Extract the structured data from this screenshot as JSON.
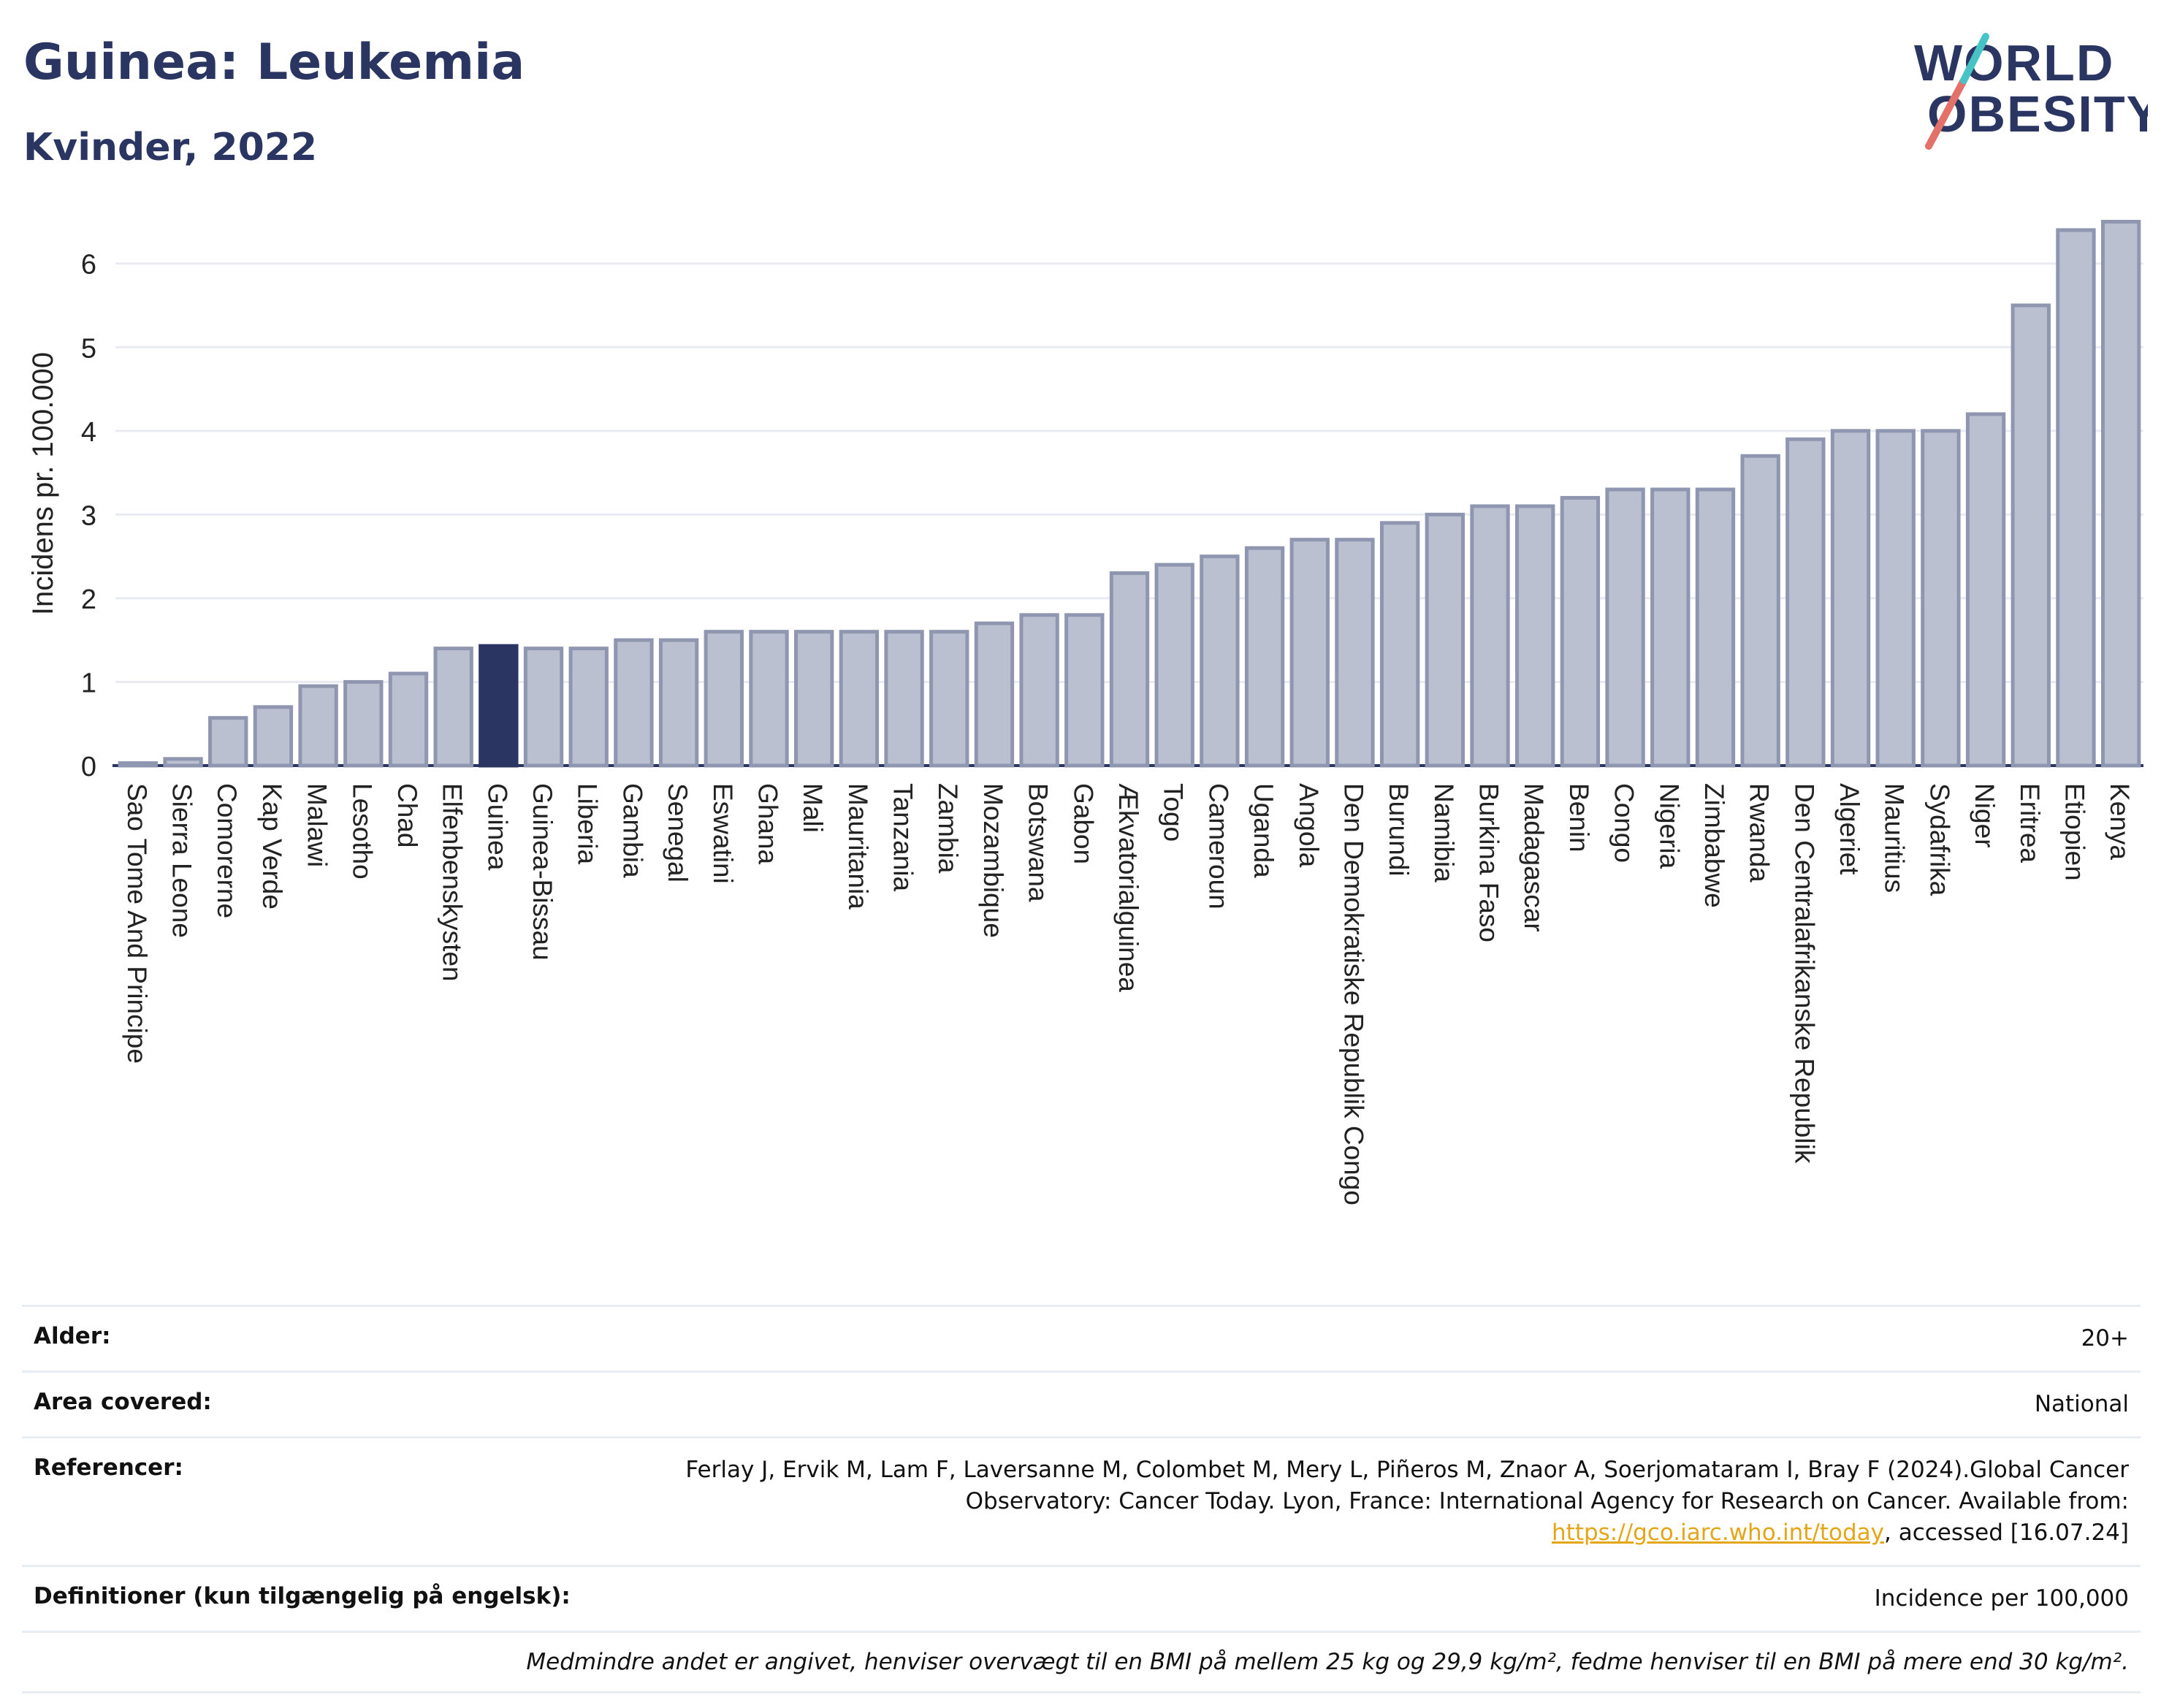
{
  "header": {
    "title": "Guinea: Leukemia",
    "subtitle": "Kvinder, 2022"
  },
  "logo": {
    "line1": "WORLD",
    "line2": "OBESITY",
    "colors": [
      "#2b3562",
      "#e4706a",
      "#47c3c5"
    ]
  },
  "colors": {
    "bar": "#bbc0d0",
    "bar_border": "#8f96b0",
    "highlight": "#2b3562",
    "grid": "#e8ebf2",
    "axis": "#2b3562"
  },
  "chart_data": {
    "type": "bar",
    "title": "",
    "ylabel": "Incidens pr. 100.000",
    "xlabel": "",
    "ylim": [
      0,
      6.6
    ],
    "yticks": [
      0,
      1,
      2,
      3,
      4,
      5,
      6
    ],
    "grid": true,
    "highlight": "Guinea",
    "categories": [
      "Sao Tome And Principe",
      "Sierra Leone",
      "Comorerne",
      "Kap Verde",
      "Malawi",
      "Lesotho",
      "Chad",
      "Elfenbenskysten",
      "Guinea",
      "Guinea-Bissau",
      "Liberia",
      "Gambia",
      "Senegal",
      "Eswatini",
      "Ghana",
      "Mali",
      "Mauritania",
      "Tanzania",
      "Zambia",
      "Mozambique",
      "Botswana",
      "Gabon",
      "Ækvatorialguinea",
      "Togo",
      "Cameroun",
      "Uganda",
      "Angola",
      "Den Demokratiske Republik Congo",
      "Burundi",
      "Namibia",
      "Burkina Faso",
      "Madagascar",
      "Benin",
      "Congo",
      "Nigeria",
      "Zimbabwe",
      "Rwanda",
      "Den Centralafrikanske Republik",
      "Algeriet",
      "Mauritius",
      "Sydafrika",
      "Niger",
      "Eritrea",
      "Etiopien",
      "Kenya"
    ],
    "values": [
      0.03,
      0.08,
      0.57,
      0.7,
      0.95,
      1.0,
      1.1,
      1.4,
      1.43,
      1.4,
      1.4,
      1.5,
      1.5,
      1.6,
      1.6,
      1.6,
      1.6,
      1.6,
      1.6,
      1.7,
      1.8,
      1.8,
      2.3,
      2.4,
      2.5,
      2.6,
      2.7,
      2.7,
      2.9,
      3.0,
      3.1,
      3.1,
      3.2,
      3.3,
      3.3,
      3.3,
      3.7,
      3.9,
      4.0,
      4.0,
      4.0,
      4.2,
      5.5,
      6.4,
      6.5
    ]
  },
  "info": {
    "age_label": "Alder:",
    "age_value": "20+",
    "area_label": "Area covered:",
    "area_value": "National",
    "ref_label": "Referencer:",
    "ref_text1": "Ferlay J, Ervik M, Lam F, Laversanne M, Colombet M, Mery L, Piñeros M, Znaor A, Soerjomataram I, Bray F (2024).Global Cancer Observatory: Cancer Today. Lyon, France: International Agency for Research on Cancer. Available from: ",
    "ref_link": "https://gco.iarc.who.int/today",
    "ref_text2": ", accessed [16.07.24]",
    "def_label": "Definitioner (kun tilgængelig på engelsk):",
    "def_value": "Incidence per 100,000",
    "note": "Medmindre andet er angivet, henviser overvægt til en BMI på mellem 25 kg og 29,9 kg/m², fedme henviser til en BMI på mere end 30 kg/m²."
  }
}
